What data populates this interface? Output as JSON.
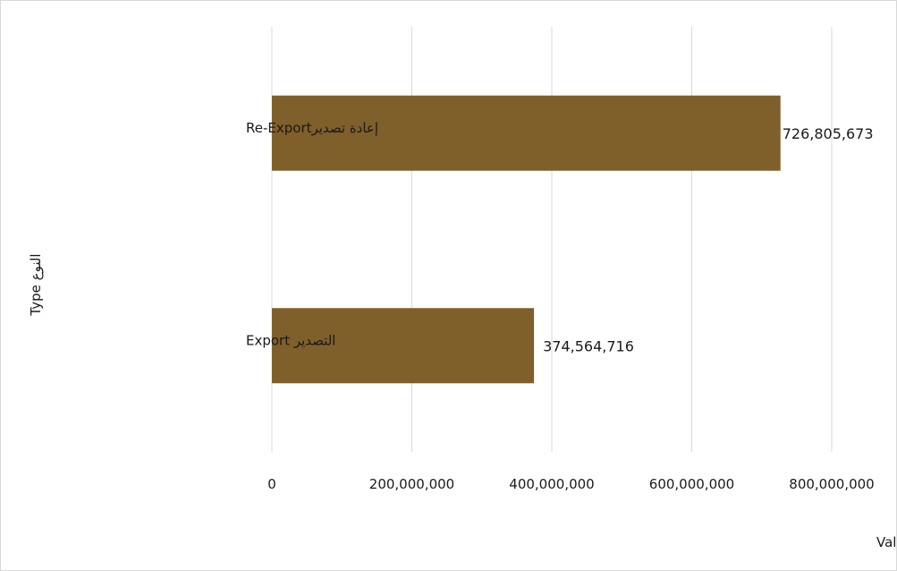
{
  "chart_data": {
    "type": "bar",
    "orientation": "horizontal",
    "categories": [
      "إعادة تصديرRe-Export",
      "التصدير Export"
    ],
    "values": [
      726805673,
      374564716
    ],
    "value_labels": [
      "726,805,673",
      "374,564,716"
    ],
    "xlabel": "القيمة Value",
    "ylabel": "النوع Type",
    "xlim": [
      0,
      800000000
    ],
    "xticks": [
      0,
      200000000,
      400000000,
      600000000,
      800000000
    ],
    "xtick_labels": [
      "0",
      "200,000,000",
      "400,000,000",
      "600,000,000",
      "800,000,000"
    ],
    "grid": "vertical",
    "legend": "none"
  },
  "colors": {
    "bar": "#7f5f2a",
    "grid": "#d9d9d9",
    "text": "#1a1a1a"
  }
}
